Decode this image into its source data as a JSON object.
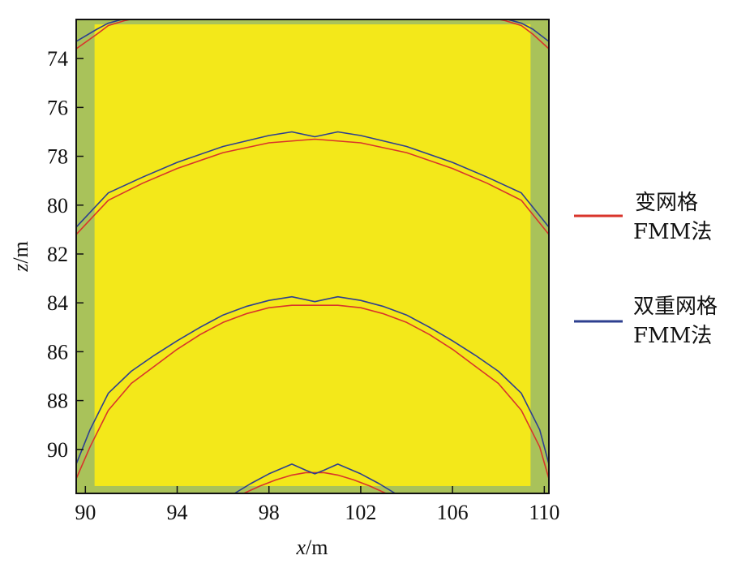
{
  "chart_data": {
    "type": "line",
    "xlabel_var": "x",
    "xlabel_unit": "/m",
    "ylabel_var": "z",
    "ylabel_unit": "/m",
    "xlim": [
      89.6,
      110.2
    ],
    "ylim": [
      91.8,
      72.4
    ],
    "x_ticks": [
      90,
      94,
      98,
      102,
      106,
      110
    ],
    "y_ticks": [
      74,
      76,
      78,
      80,
      82,
      84,
      86,
      88,
      90
    ],
    "grid": false,
    "legend_position": "right",
    "colors": {
      "background_field": "#f3e81a",
      "border_field": "#a9c25a",
      "red_series": "#d9342b",
      "blue_series": "#2d3f8f"
    },
    "inner_region": {
      "x": [
        90.4,
        109.4
      ],
      "z": [
        72.6,
        91.5
      ]
    },
    "series": [
      {
        "name": "变网格 FMM法",
        "legend_line1": "变网格",
        "legend_line2": "FMM法",
        "color": "#d9342b",
        "fronts": [
          {
            "x": [
              89.6,
              90.5,
              91.0,
              91.7,
              92.5
            ],
            "z": [
              73.6,
              73.0,
              72.65,
              72.45,
              72.3
            ]
          },
          {
            "x": [
              107.5,
              108.3,
              109.0,
              109.5,
              110.2
            ],
            "z": [
              72.3,
              72.45,
              72.65,
              73.0,
              73.6
            ]
          },
          {
            "x": [
              89.6,
              91.0,
              92.5,
              94.0,
              96.0,
              98.0,
              100.0,
              102.0,
              104.0,
              106.0,
              107.5,
              109.0,
              110.2
            ],
            "z": [
              81.2,
              79.8,
              79.1,
              78.5,
              77.85,
              77.45,
              77.3,
              77.45,
              77.85,
              78.5,
              79.1,
              79.8,
              81.2
            ]
          },
          {
            "x": [
              89.6,
              90.2,
              91.0,
              92.0,
              93.0,
              94.0,
              95.0,
              96.0,
              97.0,
              98.0,
              99.0,
              100.0,
              101.0,
              102.0,
              103.0,
              104.0,
              105.0,
              106.0,
              107.0,
              108.0,
              109.0,
              109.8,
              110.2
            ],
            "z": [
              91.2,
              89.9,
              88.4,
              87.3,
              86.6,
              85.9,
              85.3,
              84.8,
              84.45,
              84.2,
              84.1,
              84.1,
              84.1,
              84.2,
              84.45,
              84.8,
              85.3,
              85.9,
              86.6,
              87.3,
              88.4,
              89.9,
              91.2
            ]
          },
          {
            "x": [
              96.9,
              97.6,
              98.3,
              99.0,
              99.6,
              100.0,
              100.4,
              101.0,
              101.7,
              102.4,
              103.1
            ],
            "z": [
              91.8,
              91.5,
              91.25,
              91.05,
              90.95,
              90.95,
              90.95,
              91.05,
              91.25,
              91.5,
              91.8
            ]
          }
        ]
      },
      {
        "name": "双重网格 FMM法",
        "legend_line1": "双重网格",
        "legend_line2": "FMM法",
        "color": "#2d3f8f",
        "fronts": [
          {
            "x": [
              89.6,
              90.5,
              91.0,
              91.6,
              92.2
            ],
            "z": [
              73.3,
              72.8,
              72.55,
              72.4,
              72.3
            ]
          },
          {
            "x": [
              107.8,
              108.4,
              109.0,
              109.5,
              110.2
            ],
            "z": [
              72.3,
              72.4,
              72.55,
              72.8,
              73.3
            ]
          },
          {
            "x": [
              89.6,
              91.0,
              92.5,
              94.0,
              96.0,
              98.0,
              99.0,
              100.0,
              101.0,
              102.0,
              104.0,
              106.0,
              107.5,
              109.0,
              110.2
            ],
            "z": [
              80.9,
              79.5,
              78.85,
              78.25,
              77.6,
              77.15,
              77.0,
              77.2,
              77.0,
              77.15,
              77.6,
              78.25,
              78.85,
              79.5,
              80.9
            ]
          },
          {
            "x": [
              89.6,
              90.2,
              91.0,
              92.0,
              93.0,
              94.0,
              95.0,
              96.0,
              97.0,
              98.0,
              99.0,
              100.0,
              101.0,
              102.0,
              103.0,
              104.0,
              105.0,
              106.0,
              107.0,
              108.0,
              109.0,
              109.8,
              110.2
            ],
            "z": [
              90.6,
              89.2,
              87.7,
              86.8,
              86.15,
              85.55,
              85.0,
              84.5,
              84.15,
              83.9,
              83.75,
              83.95,
              83.75,
              83.9,
              84.15,
              84.5,
              85.0,
              85.55,
              86.15,
              86.8,
              87.7,
              89.2,
              90.6
            ]
          },
          {
            "x": [
              96.5,
              97.2,
              98.0,
              99.0,
              99.6,
              100.0,
              100.4,
              101.0,
              102.0,
              102.8,
              103.5
            ],
            "z": [
              91.8,
              91.4,
              91.0,
              90.6,
              90.85,
              91.0,
              90.85,
              90.6,
              91.0,
              91.4,
              91.8
            ]
          }
        ]
      }
    ]
  }
}
